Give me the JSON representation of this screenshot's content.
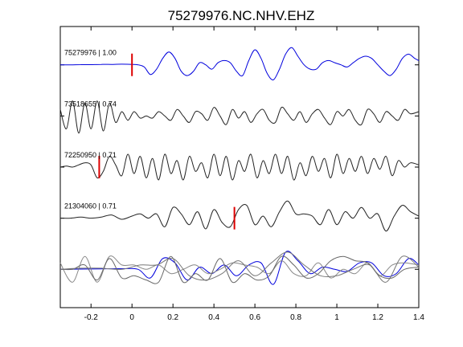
{
  "chart_data": {
    "type": "line",
    "title": "75279976.NC.NHV.EHZ",
    "xlabel": "",
    "ylabel": "",
    "xlim": [
      -0.35,
      1.4
    ],
    "x_ticks": [
      -0.2,
      0,
      0.2,
      0.4,
      0.6,
      0.8,
      1,
      1.2,
      1.4
    ],
    "x_tick_labels": [
      "-0.2",
      "0",
      "0.2",
      "0.4",
      "0.6",
      "0.8",
      "1",
      "1.2",
      "1.4"
    ],
    "grid": false,
    "series": [
      {
        "name": "75279976 | 1.00",
        "color": "#0000dd",
        "pick_time": 0.0,
        "x": [
          -0.35,
          -0.3,
          -0.25,
          -0.2,
          -0.15,
          -0.1,
          -0.05,
          0.0,
          0.03,
          0.06,
          0.09,
          0.12,
          0.15,
          0.18,
          0.21,
          0.24,
          0.27,
          0.3,
          0.33,
          0.36,
          0.39,
          0.42,
          0.45,
          0.48,
          0.51,
          0.54,
          0.57,
          0.6,
          0.63,
          0.66,
          0.69,
          0.72,
          0.75,
          0.78,
          0.81,
          0.84,
          0.87,
          0.9,
          0.93,
          0.96,
          0.99,
          1.02,
          1.05,
          1.08,
          1.11,
          1.14,
          1.17,
          1.2,
          1.23,
          1.26,
          1.29,
          1.32,
          1.35,
          1.38,
          1.4
        ],
        "y": [
          0,
          0,
          0.01,
          0.01,
          0.02,
          0.02,
          0.03,
          0.02,
          0,
          -0.1,
          -0.45,
          -0.2,
          0.3,
          0.6,
          0.3,
          -0.3,
          -0.5,
          -0.3,
          0.1,
          0.0,
          -0.2,
          0.1,
          0.2,
          0.1,
          -0.3,
          -0.5,
          0.2,
          0.7,
          0.3,
          -0.4,
          -0.7,
          -0.2,
          0.5,
          0.8,
          0.4,
          0.0,
          -0.2,
          -0.2,
          0.1,
          0.2,
          0.1,
          0.0,
          -0.1,
          0.1,
          0.3,
          0.4,
          0.3,
          0.0,
          -0.3,
          -0.5,
          -0.2,
          0.3,
          0.5,
          0.3,
          0.2
        ]
      },
      {
        "name": "73518655 | 0.74",
        "color": "#222222",
        "x": [
          -0.35,
          -0.32,
          -0.29,
          -0.26,
          -0.23,
          -0.2,
          -0.17,
          -0.14,
          -0.11,
          -0.08,
          -0.05,
          -0.02,
          0.01,
          0.04,
          0.07,
          0.1,
          0.13,
          0.16,
          0.19,
          0.22,
          0.25,
          0.28,
          0.31,
          0.34,
          0.37,
          0.4,
          0.43,
          0.46,
          0.49,
          0.52,
          0.55,
          0.58,
          0.61,
          0.64,
          0.67,
          0.7,
          0.73,
          0.76,
          0.79,
          0.82,
          0.85,
          0.88,
          0.91,
          0.94,
          0.97,
          1.0,
          1.03,
          1.06,
          1.09,
          1.12,
          1.15,
          1.18,
          1.21,
          1.24,
          1.27,
          1.3,
          1.33,
          1.36,
          1.4
        ],
        "y": [
          0.3,
          -0.6,
          0.7,
          -0.8,
          0.6,
          -0.6,
          0.7,
          -0.7,
          0.6,
          -0.3,
          0.2,
          -0.2,
          0.2,
          -0.1,
          0.0,
          -0.1,
          0.2,
          0.0,
          -0.2,
          0.3,
          0.0,
          -0.3,
          0.2,
          0.1,
          -0.2,
          0.4,
          0.0,
          -0.4,
          0.3,
          -0.1,
          0.2,
          -0.3,
          0.1,
          0.3,
          -0.2,
          -0.3,
          0.4,
          0.1,
          -0.2,
          0.2,
          -0.3,
          0.1,
          0.3,
          -0.1,
          -0.4,
          0.2,
          0.0,
          0.3,
          -0.2,
          -0.4,
          0.3,
          0.1,
          -0.3,
          0.2,
          0.0,
          -0.2,
          0.3,
          0.1,
          0.2
        ]
      },
      {
        "name": "72250950 | 0.71",
        "color": "#222222",
        "pick_time": -0.16,
        "x": [
          -0.35,
          -0.32,
          -0.29,
          -0.26,
          -0.23,
          -0.2,
          -0.17,
          -0.14,
          -0.11,
          -0.08,
          -0.05,
          -0.02,
          0.01,
          0.04,
          0.07,
          0.1,
          0.13,
          0.16,
          0.19,
          0.22,
          0.25,
          0.28,
          0.31,
          0.34,
          0.37,
          0.4,
          0.43,
          0.46,
          0.49,
          0.52,
          0.55,
          0.58,
          0.61,
          0.64,
          0.67,
          0.7,
          0.73,
          0.76,
          0.79,
          0.82,
          0.85,
          0.88,
          0.91,
          0.94,
          0.97,
          1.0,
          1.03,
          1.06,
          1.09,
          1.12,
          1.15,
          1.18,
          1.21,
          1.24,
          1.27,
          1.3,
          1.33,
          1.36,
          1.4
        ],
        "y": [
          0.0,
          0.05,
          0.0,
          0.1,
          0.2,
          0.1,
          -0.5,
          -0.2,
          0.5,
          0.1,
          -0.4,
          0.6,
          -0.3,
          0.5,
          -0.5,
          0.4,
          -0.6,
          0.6,
          -0.3,
          0.3,
          -0.6,
          0.5,
          -0.2,
          0.2,
          -0.5,
          0.6,
          -0.4,
          0.5,
          -0.6,
          0.3,
          -0.2,
          0.6,
          -0.5,
          0.3,
          -0.3,
          0.6,
          -0.3,
          0.5,
          -0.6,
          0.2,
          -0.4,
          0.5,
          -0.2,
          0.4,
          -0.5,
          0.6,
          -0.3,
          0.4,
          -0.2,
          0.5,
          -0.3,
          0.4,
          -0.1,
          0.5,
          -0.4,
          0.3,
          0.0,
          0.2,
          0.1
        ]
      },
      {
        "name": "21304060 | 0.71",
        "color": "#222222",
        "pick_time": 0.5,
        "x": [
          -0.35,
          -0.3,
          -0.25,
          -0.2,
          -0.15,
          -0.1,
          -0.05,
          0.0,
          0.04,
          0.08,
          0.12,
          0.16,
          0.2,
          0.24,
          0.28,
          0.32,
          0.36,
          0.4,
          0.44,
          0.48,
          0.52,
          0.56,
          0.6,
          0.64,
          0.68,
          0.72,
          0.76,
          0.8,
          0.84,
          0.88,
          0.92,
          0.96,
          1.0,
          1.04,
          1.08,
          1.12,
          1.16,
          1.2,
          1.24,
          1.28,
          1.32,
          1.36,
          1.4
        ],
        "y": [
          0.0,
          0.0,
          0.05,
          0.0,
          0.05,
          0.15,
          -0.05,
          0.1,
          0.2,
          0.0,
          0.2,
          -0.4,
          0.5,
          0.2,
          -0.3,
          0.3,
          -0.5,
          0.4,
          -0.2,
          -0.4,
          0.4,
          0.6,
          -0.3,
          0.1,
          -0.4,
          0.3,
          0.8,
          0.2,
          0.2,
          0.1,
          -0.3,
          0.4,
          -0.3,
          0.3,
          0.0,
          0.5,
          0.0,
          0.2,
          -0.6,
          0.1,
          0.6,
          0.3,
          0.1
        ]
      }
    ],
    "overlay_series": [
      {
        "color": "#0000dd",
        "x": [
          -0.35,
          -0.25,
          -0.15,
          -0.05,
          0.03,
          0.09,
          0.15,
          0.21,
          0.27,
          0.33,
          0.39,
          0.45,
          0.51,
          0.57,
          0.63,
          0.69,
          0.75,
          0.81,
          0.87,
          0.93,
          0.99,
          1.05,
          1.11,
          1.17,
          1.23,
          1.29,
          1.35,
          1.4
        ],
        "y": [
          0,
          0.01,
          0.02,
          0.03,
          0,
          -0.4,
          0.5,
          0.3,
          -0.5,
          0.1,
          -0.2,
          0.2,
          -0.3,
          0.2,
          0.3,
          -0.7,
          0.8,
          0.4,
          -0.2,
          0.1,
          0.0,
          -0.1,
          0.3,
          0.3,
          -0.3,
          -0.2,
          0.5,
          0.2
        ]
      },
      {
        "color": "#888888",
        "x": [
          -0.35,
          -0.29,
          -0.23,
          -0.17,
          -0.11,
          -0.05,
          0.01,
          0.07,
          0.13,
          0.19,
          0.25,
          0.31,
          0.37,
          0.43,
          0.49,
          0.55,
          0.61,
          0.67,
          0.73,
          0.79,
          0.85,
          0.91,
          0.97,
          1.03,
          1.09,
          1.15,
          1.21,
          1.27,
          1.33,
          1.4
        ],
        "y": [
          0.3,
          -0.6,
          0.6,
          -0.6,
          0.6,
          0.2,
          0.2,
          0.0,
          0.2,
          -0.2,
          0.0,
          0.2,
          -0.2,
          0.0,
          0.3,
          0.2,
          0.1,
          -0.2,
          0.4,
          -0.2,
          -0.3,
          0.3,
          -0.4,
          0.0,
          -0.2,
          0.3,
          -0.3,
          0.2,
          0.3,
          0.2
        ]
      },
      {
        "color": "#666666",
        "x": [
          -0.35,
          -0.29,
          -0.23,
          -0.17,
          -0.11,
          -0.05,
          0.01,
          0.07,
          0.13,
          0.19,
          0.25,
          0.31,
          0.37,
          0.43,
          0.49,
          0.55,
          0.61,
          0.67,
          0.73,
          0.79,
          0.85,
          0.91,
          0.97,
          1.03,
          1.09,
          1.15,
          1.21,
          1.27,
          1.33,
          1.4
        ],
        "y": [
          0.0,
          0.0,
          0.2,
          -0.5,
          0.5,
          -0.4,
          -0.3,
          -0.5,
          -0.6,
          0.6,
          -0.6,
          -0.2,
          -0.5,
          0.5,
          -0.6,
          -0.2,
          -0.5,
          -0.3,
          0.6,
          0.2,
          -0.4,
          -0.2,
          0.4,
          0.6,
          0.4,
          0.3,
          -0.3,
          -0.4,
          0.0,
          0.1
        ]
      },
      {
        "color": "#777777",
        "x": [
          -0.35,
          -0.25,
          -0.15,
          -0.05,
          0.04,
          0.12,
          0.2,
          0.28,
          0.36,
          0.44,
          0.52,
          0.6,
          0.68,
          0.76,
          0.84,
          0.92,
          1.0,
          1.08,
          1.16,
          1.24,
          1.32,
          1.4
        ],
        "y": [
          0.0,
          0.05,
          0.05,
          0.0,
          0.2,
          0.2,
          0.5,
          -0.3,
          -0.5,
          -0.2,
          0.4,
          -0.3,
          0.3,
          0.8,
          0.2,
          -0.3,
          -0.3,
          0.0,
          0.2,
          -0.6,
          0.6,
          0.1
        ]
      }
    ]
  }
}
